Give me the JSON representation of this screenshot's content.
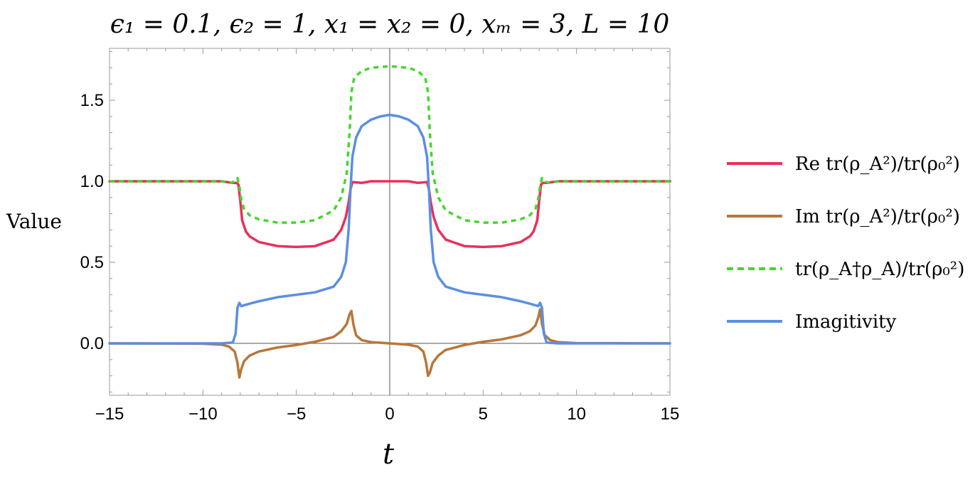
{
  "chart_data": {
    "type": "line",
    "title": "ϵ₁ = 0.1, ϵ₂ = 1, x₁ = x₂ = 0, xₘ = 3, L = 10",
    "xlabel": "t",
    "ylabel": "Value",
    "xlim": [
      -15,
      15
    ],
    "ylim": [
      -0.32,
      1.82
    ],
    "x_ticks": [
      -15,
      -10,
      -5,
      0,
      5,
      10,
      15
    ],
    "x_tick_labels": [
      "−15",
      "−10",
      "−5",
      "0",
      "5",
      "10",
      "15"
    ],
    "y_ticks": [
      0.0,
      0.5,
      1.0,
      1.5
    ],
    "y_tick_labels": [
      "0.0",
      "0.5",
      "1.0",
      "1.5"
    ],
    "grid": false,
    "legend_position": "right",
    "series": [
      {
        "name": "Re tr(ρ_A²)/tr(ρ₀²)",
        "color": "#e8305a",
        "dash": "solid",
        "x": [
          -15,
          -9,
          -8.4,
          -8.2,
          -8.1,
          -8.0,
          -7.9,
          -7.7,
          -7.5,
          -7,
          -6,
          -5,
          -4,
          -3,
          -2.6,
          -2.35,
          -2.2,
          -2.1,
          -2.0,
          -1.5,
          -1,
          0,
          1,
          1.5,
          2.0,
          2.1,
          2.2,
          2.35,
          2.6,
          3,
          4,
          5,
          6,
          7,
          7.5,
          7.7,
          7.9,
          8.0,
          8.1,
          8.2,
          8.4,
          9,
          15
        ],
        "y": [
          1.0,
          1.0,
          0.99,
          0.99,
          0.98,
          0.88,
          0.76,
          0.69,
          0.66,
          0.625,
          0.6,
          0.595,
          0.6,
          0.64,
          0.7,
          0.78,
          0.87,
          0.95,
          0.995,
          0.99,
          1.0,
          1.0,
          1.0,
          0.99,
          0.995,
          0.95,
          0.87,
          0.78,
          0.7,
          0.64,
          0.6,
          0.595,
          0.6,
          0.625,
          0.66,
          0.69,
          0.76,
          0.88,
          0.98,
          0.99,
          0.99,
          1.0,
          1.0
        ]
      },
      {
        "name": "Im tr(ρ_A²)/tr(ρ₀²)",
        "color": "#b8763a",
        "dash": "solid",
        "x": [
          -15,
          -10,
          -9,
          -8.6,
          -8.3,
          -8.15,
          -8.05,
          -7.95,
          -7.8,
          -7.5,
          -7,
          -6,
          -5,
          -4,
          -3,
          -2.6,
          -2.3,
          -2.15,
          -2.05,
          -1.95,
          -1.8,
          -1.5,
          -1,
          0,
          1,
          1.5,
          1.8,
          1.95,
          2.05,
          2.15,
          2.3,
          2.6,
          3,
          4,
          5,
          6,
          7,
          7.5,
          7.8,
          7.95,
          8.05,
          8.15,
          8.3,
          8.6,
          9,
          10,
          15
        ],
        "y": [
          0.0,
          -0.002,
          -0.008,
          -0.02,
          -0.05,
          -0.12,
          -0.21,
          -0.16,
          -0.11,
          -0.075,
          -0.05,
          -0.025,
          -0.01,
          0.01,
          0.04,
          0.075,
          0.12,
          0.18,
          0.2,
          0.12,
          0.05,
          0.02,
          0.008,
          0.0,
          -0.008,
          -0.02,
          -0.05,
          -0.12,
          -0.2,
          -0.18,
          -0.12,
          -0.075,
          -0.04,
          -0.01,
          0.01,
          0.025,
          0.05,
          0.075,
          0.11,
          0.16,
          0.21,
          0.12,
          0.05,
          0.02,
          0.008,
          0.002,
          0.0
        ]
      },
      {
        "name": "tr(ρ_A†ρ_A)/tr(ρ₀²)",
        "color": "#45d62e",
        "dash": "dashed",
        "x": [
          -15,
          -9,
          -8.5,
          -8.3,
          -8.15,
          -8.05,
          -7.95,
          -7.8,
          -7.5,
          -7,
          -6,
          -5,
          -4,
          -3,
          -2.6,
          -2.3,
          -2.15,
          -2.05,
          -1.9,
          -1.5,
          -1,
          0,
          1,
          1.5,
          1.9,
          2.05,
          2.15,
          2.3,
          2.6,
          3,
          4,
          5,
          6,
          7,
          7.5,
          7.8,
          7.95,
          8.05,
          8.15,
          8.3,
          8.5,
          9,
          15
        ],
        "y": [
          1.0,
          1.0,
          0.99,
          1.0,
          1.02,
          0.97,
          0.89,
          0.83,
          0.79,
          0.765,
          0.745,
          0.745,
          0.76,
          0.82,
          0.9,
          1.05,
          1.3,
          1.55,
          1.64,
          1.68,
          1.7,
          1.71,
          1.7,
          1.68,
          1.64,
          1.55,
          1.3,
          1.05,
          0.9,
          0.82,
          0.76,
          0.745,
          0.745,
          0.765,
          0.79,
          0.83,
          0.89,
          0.97,
          1.02,
          1.0,
          0.99,
          1.0,
          1.0
        ]
      },
      {
        "name": "Imagitivity",
        "color": "#5b8fe0",
        "dash": "solid",
        "x": [
          -15,
          -9,
          -8.4,
          -8.25,
          -8.15,
          -8.05,
          -7.95,
          -7.8,
          -7.5,
          -7,
          -6,
          -5,
          -4,
          -3,
          -2.6,
          -2.35,
          -2.2,
          -2.1,
          -2.0,
          -1.8,
          -1.5,
          -1,
          -0.5,
          0,
          0.5,
          1,
          1.5,
          1.8,
          2.0,
          2.1,
          2.2,
          2.35,
          2.6,
          3,
          4,
          5,
          6,
          7,
          7.5,
          7.8,
          7.95,
          8.05,
          8.15,
          8.25,
          8.4,
          9,
          15
        ],
        "y": [
          0.0,
          0.0,
          0.005,
          0.06,
          0.22,
          0.25,
          0.23,
          0.235,
          0.245,
          0.26,
          0.285,
          0.3,
          0.315,
          0.35,
          0.41,
          0.5,
          0.7,
          0.95,
          1.15,
          1.27,
          1.34,
          1.38,
          1.4,
          1.41,
          1.4,
          1.38,
          1.34,
          1.27,
          1.15,
          0.95,
          0.7,
          0.5,
          0.41,
          0.35,
          0.315,
          0.3,
          0.285,
          0.26,
          0.245,
          0.235,
          0.23,
          0.25,
          0.22,
          0.06,
          0.005,
          0.0,
          0.0
        ]
      }
    ]
  }
}
